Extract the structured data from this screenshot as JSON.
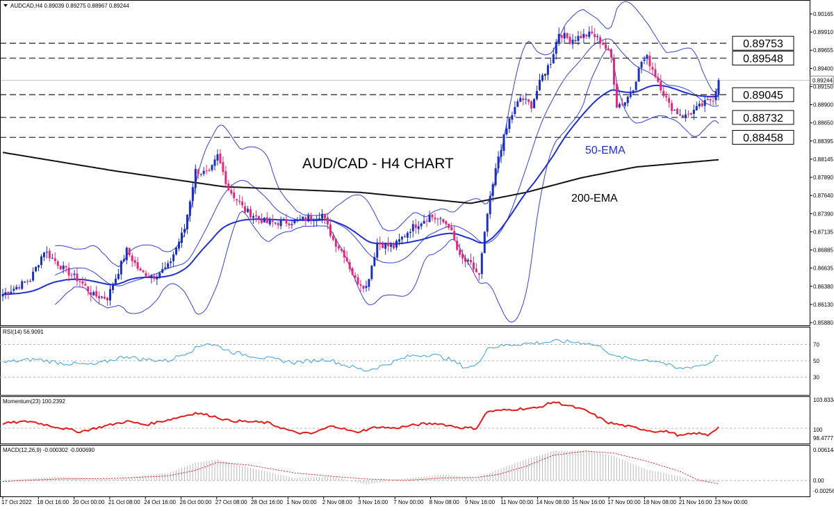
{
  "chart_data": [
    {
      "type": "candlestick",
      "symbol_header": "AUDCAD,H4  0.89039 0.89275 0.88967 0.89244",
      "title": "AUD/CAD - H4 CHART",
      "last_price": "0.89244",
      "ylim": [
        0.8588,
        0.903
      ],
      "y_ticks": [
        "0.90165",
        "0.89910",
        "0.89655",
        "0.89400",
        "0.89150",
        "0.88900",
        "0.88650",
        "0.88395",
        "0.88145",
        "0.87890",
        "0.87640",
        "0.87390",
        "0.87135",
        "0.86885",
        "0.86635",
        "0.86380",
        "0.86130",
        "0.85880"
      ],
      "x_ticks": [
        "17 Oct 2022",
        "18 Oct 16:00",
        "20 Oct 00:00",
        "21 Oct 08:00",
        "24 Oct 16:00",
        "26 Oct 00:00",
        "27 Oct 08:00",
        "28 Oct 16:00",
        "1 Nov 00:00",
        "2 Nov 08:00",
        "3 Nov 16:00",
        "7 Nov 00:00",
        "8 Nov 08:00",
        "9 Nov 16:00",
        "11 Nov 00:00",
        "14 Nov 08:00",
        "15 Nov 16:00",
        "17 Nov 00:00",
        "18 Nov 08:00",
        "21 Nov 16:00",
        "23 Nov 00:00"
      ],
      "levels": [
        {
          "label": "0.89753",
          "value": 0.89753
        },
        {
          "label": "0.89548",
          "value": 0.89548
        },
        {
          "label": "0.89045",
          "value": 0.89045
        },
        {
          "label": "0.88732",
          "value": 0.88732
        },
        {
          "label": "0.88458",
          "value": 0.88458
        }
      ],
      "annotations": {
        "ema50": "50-EMA",
        "ema200": "200-EMA"
      },
      "colors": {
        "bull": "#1a2fc0",
        "bear": "#e0297e",
        "ema50": "#1f2fcf",
        "ema200": "#111111",
        "bands": "#3040d8",
        "level": "#333333"
      },
      "close_anchors": [
        [
          0,
          0.863
        ],
        [
          10,
          0.865
        ],
        [
          15,
          0.869
        ],
        [
          22,
          0.8665
        ],
        [
          28,
          0.8648
        ],
        [
          33,
          0.8628
        ],
        [
          38,
          0.8625
        ],
        [
          45,
          0.869
        ],
        [
          50,
          0.866
        ],
        [
          55,
          0.8655
        ],
        [
          60,
          0.8668
        ],
        [
          66,
          0.872
        ],
        [
          70,
          0.88
        ],
        [
          75,
          0.8795
        ],
        [
          78,
          0.882
        ],
        [
          82,
          0.8775
        ],
        [
          88,
          0.8745
        ],
        [
          96,
          0.8728
        ],
        [
          106,
          0.873
        ],
        [
          116,
          0.874
        ],
        [
          120,
          0.8705
        ],
        [
          124,
          0.8685
        ],
        [
          128,
          0.865
        ],
        [
          132,
          0.864
        ],
        [
          136,
          0.87
        ],
        [
          142,
          0.8695
        ],
        [
          148,
          0.872
        ],
        [
          155,
          0.8738
        ],
        [
          162,
          0.8725
        ],
        [
          166,
          0.868
        ],
        [
          170,
          0.867
        ],
        [
          173,
          0.8655
        ],
        [
          176,
          0.874
        ],
        [
          180,
          0.882
        ],
        [
          184,
          0.887
        ],
        [
          188,
          0.89
        ],
        [
          192,
          0.889
        ],
        [
          196,
          0.893
        ],
        [
          199,
          0.895
        ],
        [
          202,
          0.899
        ],
        [
          206,
          0.898
        ],
        [
          210,
          0.8985
        ],
        [
          214,
          0.8988
        ],
        [
          218,
          0.8975
        ],
        [
          221,
          0.8955
        ],
        [
          223,
          0.889
        ],
        [
          226,
          0.8895
        ],
        [
          229,
          0.8915
        ],
        [
          232,
          0.895
        ],
        [
          234,
          0.8955
        ],
        [
          236,
          0.894
        ],
        [
          239,
          0.8915
        ],
        [
          242,
          0.889
        ],
        [
          245,
          0.888
        ],
        [
          248,
          0.8875
        ],
        [
          252,
          0.8885
        ],
        [
          256,
          0.8895
        ],
        [
          258,
          0.89
        ],
        [
          260,
          0.8924
        ]
      ]
    },
    {
      "type": "line",
      "header": "RSI(14) 56.9091",
      "ylim": [
        10,
        90
      ],
      "y_ticks": [
        30,
        50,
        70
      ],
      "color": "#3aa0e0",
      "anchors": [
        [
          0,
          48
        ],
        [
          12,
          52
        ],
        [
          22,
          47
        ],
        [
          33,
          45
        ],
        [
          45,
          56
        ],
        [
          50,
          52
        ],
        [
          60,
          50
        ],
        [
          68,
          62
        ],
        [
          74,
          72
        ],
        [
          78,
          68
        ],
        [
          84,
          60
        ],
        [
          96,
          53
        ],
        [
          106,
          48
        ],
        [
          118,
          52
        ],
        [
          124,
          45
        ],
        [
          132,
          38
        ],
        [
          138,
          44
        ],
        [
          148,
          56
        ],
        [
          156,
          58
        ],
        [
          162,
          52
        ],
        [
          168,
          42
        ],
        [
          172,
          44
        ],
        [
          176,
          66
        ],
        [
          185,
          70
        ],
        [
          194,
          72
        ],
        [
          202,
          74
        ],
        [
          212,
          72
        ],
        [
          218,
          66
        ],
        [
          222,
          55
        ],
        [
          230,
          52
        ],
        [
          238,
          50
        ],
        [
          245,
          40
        ],
        [
          252,
          44
        ],
        [
          256,
          46
        ],
        [
          260,
          57
        ]
      ]
    },
    {
      "type": "line",
      "header": "Momentum(23) 100.2392",
      "y_ticks": [
        "103.8334",
        "100",
        "98.4777"
      ],
      "color": "#e41a1a",
      "anchors": [
        [
          0,
          100.7
        ],
        [
          10,
          101.0
        ],
        [
          18,
          100.3
        ],
        [
          28,
          99.5
        ],
        [
          38,
          100.4
        ],
        [
          45,
          101.0
        ],
        [
          52,
          100.5
        ],
        [
          62,
          101.4
        ],
        [
          70,
          102.2
        ],
        [
          76,
          101.8
        ],
        [
          82,
          101.1
        ],
        [
          96,
          100.8
        ],
        [
          106,
          99.4
        ],
        [
          112,
          99.2
        ],
        [
          120,
          100.4
        ],
        [
          128,
          99.4
        ],
        [
          136,
          100.2
        ],
        [
          142,
          100.0
        ],
        [
          152,
          100.6
        ],
        [
          158,
          100.7
        ],
        [
          166,
          100.1
        ],
        [
          172,
          100.0
        ],
        [
          176,
          102.4
        ],
        [
          188,
          102.8
        ],
        [
          194,
          102.9
        ],
        [
          200,
          103.8
        ],
        [
          206,
          103.2
        ],
        [
          212,
          102.5
        ],
        [
          220,
          100.8
        ],
        [
          228,
          100.2
        ],
        [
          236,
          99.6
        ],
        [
          242,
          99.5
        ],
        [
          246,
          98.9
        ],
        [
          252,
          99.3
        ],
        [
          256,
          99.0
        ],
        [
          260,
          100.2
        ]
      ]
    },
    {
      "type": "macd",
      "header": "MACD(12,26,9) -0.000302 -0.000690",
      "y_ticks": [
        "0.006144",
        "0.00",
        "-0.002569"
      ],
      "ylim": [
        -0.0026,
        0.0062
      ],
      "colors": {
        "hist": "#b8b8b8",
        "signal": "#e41a1a"
      },
      "hist_anchors": [
        [
          0,
          0.0
        ],
        [
          20,
          0.0008
        ],
        [
          40,
          0.0002
        ],
        [
          60,
          0.0015
        ],
        [
          70,
          0.0035
        ],
        [
          78,
          0.0042
        ],
        [
          90,
          0.0025
        ],
        [
          106,
          0.0005
        ],
        [
          120,
          0.0008
        ],
        [
          132,
          -0.0008
        ],
        [
          146,
          0.0004
        ],
        [
          160,
          0.0012
        ],
        [
          172,
          0.0004
        ],
        [
          180,
          0.0022
        ],
        [
          190,
          0.0042
        ],
        [
          200,
          0.0058
        ],
        [
          212,
          0.006
        ],
        [
          222,
          0.0048
        ],
        [
          234,
          0.0022
        ],
        [
          246,
          0.0008
        ],
        [
          252,
          -0.0002
        ],
        [
          260,
          -0.0003
        ]
      ],
      "signal_anchors": [
        [
          0,
          -0.0002
        ],
        [
          20,
          0.0003
        ],
        [
          40,
          0.0004
        ],
        [
          60,
          0.0009
        ],
        [
          70,
          0.002
        ],
        [
          78,
          0.0036
        ],
        [
          90,
          0.003
        ],
        [
          106,
          0.0015
        ],
        [
          120,
          0.0008
        ],
        [
          132,
          0.0003
        ],
        [
          146,
          0.0
        ],
        [
          160,
          0.0005
        ],
        [
          172,
          0.0006
        ],
        [
          180,
          0.0012
        ],
        [
          190,
          0.0028
        ],
        [
          200,
          0.005
        ],
        [
          212,
          0.0058
        ],
        [
          222,
          0.0054
        ],
        [
          234,
          0.0038
        ],
        [
          246,
          0.0018
        ],
        [
          252,
          0.0002
        ],
        [
          260,
          -0.0007
        ]
      ]
    }
  ]
}
